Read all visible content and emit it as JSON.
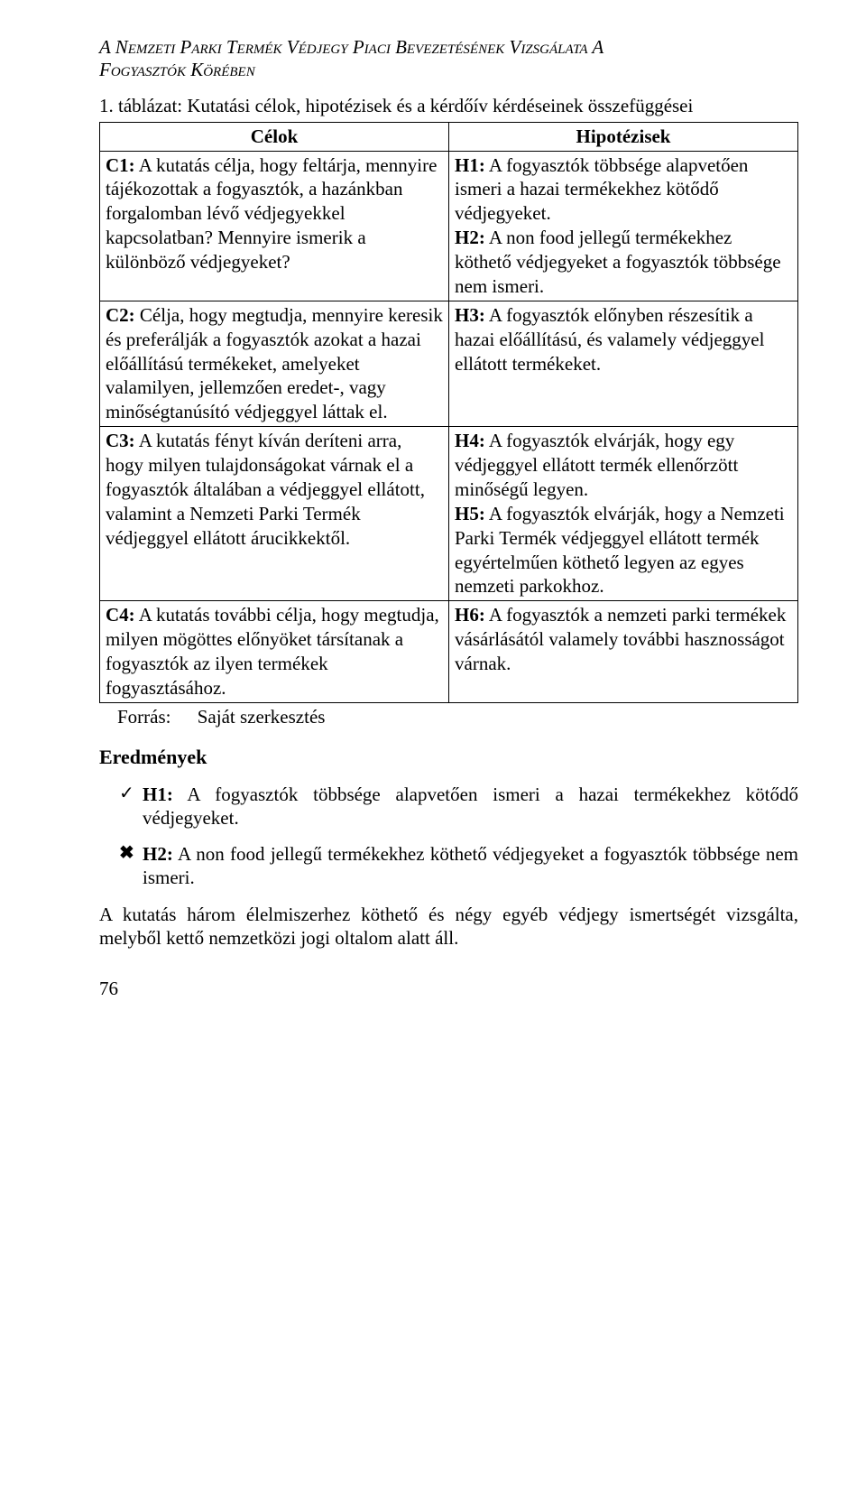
{
  "header": {
    "line1": "A Nemzeti Parki Termék Védjegy Piaci Bevezetésének Vizsgálata A",
    "line2": "Fogyasztók Körében"
  },
  "tableCaption": "1. táblázat: Kutatási célok, hipotézisek és a kérdőív kérdéseinek összefüggései",
  "table": {
    "headers": {
      "left": "Célok",
      "right": "Hipotézisek"
    },
    "rows": [
      {
        "left": {
          "bold": "C1:",
          "rest": " A kutatás célja, hogy feltárja, mennyire tájékozottak a fogyasztók, a hazánkban forgalomban lévő védjegyekkel kapcsolatban? Mennyire ismerik a különböző védjegyeket?"
        },
        "right": [
          {
            "bold": "H1:",
            "rest": " A fogyasztók többsége alapvetően ismeri a hazai termékekhez kötődő védjegyeket."
          },
          {
            "bold": "H2:",
            "rest": " A non food jellegű termékekhez köthető védjegyeket a fogyasztók többsége nem ismeri."
          }
        ]
      },
      {
        "left": {
          "bold": "C2:",
          "rest": " Célja, hogy megtudja, mennyire keresik és preferálják a fogyasztók azokat a hazai előállítású termékeket, amelyeket valamilyen, jellemzően eredet-, vagy minőségtanúsító védjeggyel láttak el."
        },
        "right": [
          {
            "bold": "H3:",
            "rest": " A fogyasztók előnyben részesítik a hazai előállítású, és valamely védjeggyel ellátott termékeket."
          }
        ]
      },
      {
        "left": {
          "bold": "C3:",
          "rest": " A kutatás fényt kíván deríteni arra, hogy milyen tulajdonságokat várnak el a fogyasztók általában a védjeggyel ellátott, valamint a Nemzeti Parki Termék védjeggyel ellátott árucikkektől."
        },
        "right": [
          {
            "bold": "H4:",
            "rest": " A fogyasztók elvárják, hogy egy védjeggyel ellátott termék ellenőrzött minőségű legyen."
          },
          {
            "bold": "H5:",
            "rest": " A fogyasztók elvárják, hogy a Nemzeti Parki Termék védjeggyel ellátott termék egyértelműen köthető legyen az egyes nemzeti parkokhoz."
          }
        ]
      },
      {
        "left": {
          "bold": "C4:",
          "rest": " A kutatás további célja, hogy megtudja, milyen mögöttes előnyöket társítanak a fogyasztók az ilyen termékek fogyasztásához."
        },
        "right": [
          {
            "bold": "H6:",
            "rest": " A fogyasztók a nemzeti parki termékek vásárlásától valamely további hasznosságot várnak."
          }
        ]
      }
    ]
  },
  "source": {
    "label": "Forrás:",
    "value": "Saját szerkesztés"
  },
  "resultsHeading": "Eredmények",
  "results": [
    {
      "icon": "check",
      "bold": "H1:",
      "text": " A fogyasztók többsége alapvetően ismeri a hazai termékekhez kötődő védjegyeket."
    },
    {
      "icon": "cross",
      "bold": "H2:",
      "text": " A non food jellegű termékekhez köthető védjegyeket a fogyasztók többsége nem ismeri."
    }
  ],
  "bodyPara": "A kutatás három élelmiszerhez köthető és négy egyéb védjegy ismertségét vizsgálta, melyből kettő nemzetközi jogi oltalom alatt áll.",
  "pageNumber": "76",
  "icons": {
    "check": "✓",
    "cross": "✖"
  }
}
